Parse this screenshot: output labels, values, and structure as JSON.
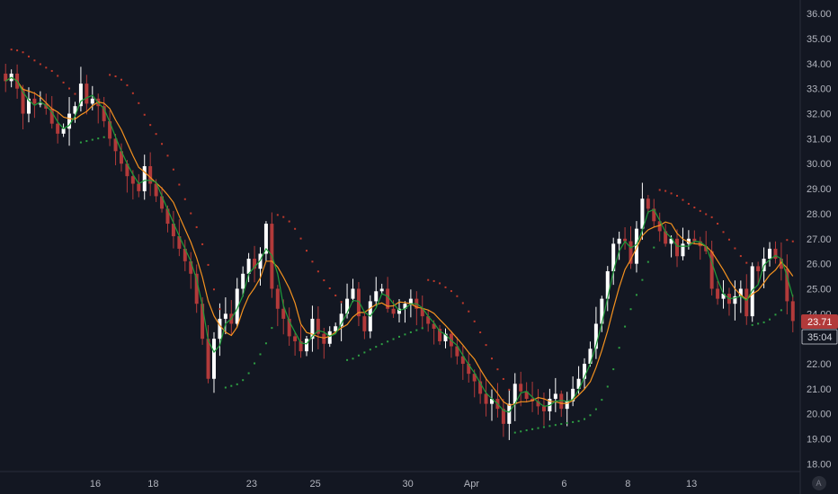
{
  "chart_data": {
    "type": "candlestick",
    "ylim": [
      17.8,
      36.4
    ],
    "price_ticks": [
      "36.00",
      "35.00",
      "34.00",
      "33.00",
      "32.00",
      "31.00",
      "30.00",
      "29.00",
      "28.00",
      "27.00",
      "26.00",
      "25.00",
      "24.00",
      "23.00",
      "22.00",
      "21.00",
      "20.00",
      "19.00",
      "18.00"
    ],
    "date_ticks": [
      {
        "label": "16",
        "bar": 15.5
      },
      {
        "label": "18",
        "bar": 25.5
      },
      {
        "label": "23",
        "bar": 42.5
      },
      {
        "label": "25",
        "bar": 53.5
      },
      {
        "label": "30",
        "bar": 69.5
      },
      {
        "label": "Apr",
        "bar": 80.5
      },
      {
        "label": "6",
        "bar": 96.5
      },
      {
        "label": "8",
        "bar": 107.5
      },
      {
        "label": "13",
        "bar": 118.5
      }
    ],
    "last_price": "23.71",
    "countdown": "35:04",
    "scale_mode": "A",
    "colors": {
      "background": "#131722",
      "up": "#ffffff",
      "down": "#b23a3a",
      "ma_fast": "#1f9c3a",
      "ma_slow": "#f5921f",
      "sar_bear": "#c0392b",
      "sar_bull": "#2ea043",
      "badge_bg": "#b23a3a",
      "timer_bg": "#131722"
    },
    "close": [
      33.3,
      33.6,
      33.0,
      32.0,
      32.6,
      32.4,
      32.4,
      32.2,
      31.6,
      31.2,
      31.4,
      32.0,
      32.3,
      33.2,
      32.4,
      32.6,
      32.3,
      31.7,
      31.0,
      30.5,
      30.0,
      29.5,
      29.2,
      28.9,
      29.9,
      29.2,
      28.7,
      28.2,
      27.6,
      27.1,
      26.6,
      26.1,
      25.6,
      24.4,
      23.0,
      21.4,
      23.0,
      23.8,
      24.0,
      23.6,
      25.0,
      25.6,
      26.2,
      25.8,
      26.4,
      27.6,
      25.0,
      24.2,
      23.8,
      23.1,
      22.9,
      22.5,
      23.0,
      23.8,
      23.2,
      22.8,
      23.3,
      23.5,
      24.0,
      24.6,
      25.0,
      23.9,
      23.3,
      24.5,
      24.9,
      25.0,
      24.2,
      24.0,
      24.2,
      24.4,
      24.6,
      24.2,
      23.9,
      23.6,
      23.4,
      22.9,
      23.2,
      22.7,
      22.3,
      22.0,
      21.6,
      21.3,
      20.8,
      20.4,
      20.6,
      20.2,
      19.6,
      20.4,
      21.2,
      20.9,
      20.6,
      20.5,
      20.3,
      20.1,
      20.6,
      20.8,
      20.2,
      20.5,
      21.0,
      21.4,
      22.0,
      22.6,
      23.6,
      24.6,
      25.7,
      26.8,
      27.0,
      26.9,
      26.0,
      27.4,
      28.6,
      28.2,
      27.7,
      27.3,
      26.8,
      27.0,
      26.3,
      26.8,
      27.0,
      26.9,
      26.7,
      26.5,
      25.0,
      24.6,
      24.8,
      24.4,
      24.7,
      25.0,
      23.9,
      25.9,
      25.7,
      26.2,
      26.6,
      26.2,
      25.8,
      24.5,
      23.71
    ]
  }
}
